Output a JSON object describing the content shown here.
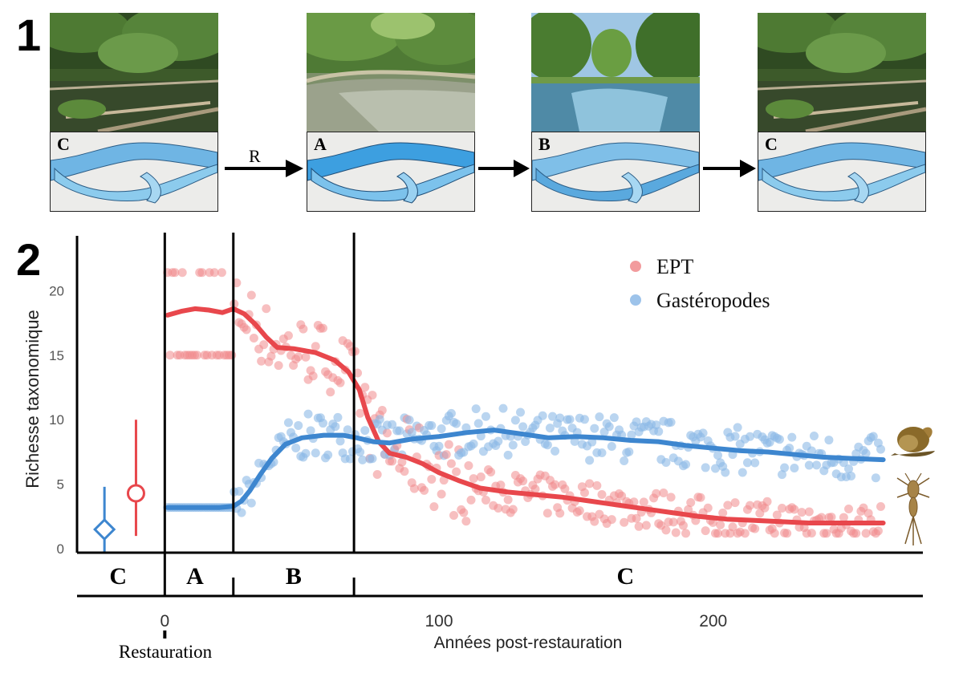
{
  "panels": {
    "one": "1",
    "two": "2"
  },
  "stages": [
    {
      "letter": "C",
      "photo": "shaded-channel"
    },
    {
      "letter": "A",
      "photo": "gravel-bed"
    },
    {
      "letter": "B",
      "photo": "open-water"
    },
    {
      "letter": "C",
      "photo": "shaded-channel"
    }
  ],
  "arrows": [
    {
      "label": "R"
    },
    {
      "label": ""
    },
    {
      "label": ""
    }
  ],
  "colors": {
    "ept": "#e8474c",
    "gastro": "#3d86cf",
    "ept_point": "#f08a8c",
    "gastro_point": "#8cb9e6"
  },
  "chart_data": {
    "type": "scatter",
    "xlabel": "Années post-restauration",
    "ylabel": "Richesse taxonomique",
    "xticks": [
      "0",
      "100",
      "200"
    ],
    "yticks": [
      "0",
      "5",
      "10",
      "15",
      "20"
    ],
    "xlim": [
      -32,
      275
    ],
    "ylim": [
      -0.3,
      23.5
    ],
    "vlines": [
      0,
      25,
      69
    ],
    "phases": [
      {
        "label": "C",
        "x": -17
      },
      {
        "label": "A",
        "x": 11
      },
      {
        "label": "B",
        "x": 47
      },
      {
        "label": "C",
        "x": 168
      }
    ],
    "restoration_label": "Restauration",
    "legend": {
      "position": "top-right",
      "items": [
        "EPT",
        "Gastéropodes"
      ]
    },
    "reference": [
      {
        "series": "Gastéropodes",
        "x": -22,
        "mean": 1.5,
        "low": -0.3,
        "high": 4.8,
        "marker": "diamond"
      },
      {
        "series": "EPT",
        "x": -10.5,
        "mean": 4.3,
        "low": 1.0,
        "high": 10.0,
        "marker": "circle"
      }
    ],
    "series": [
      {
        "name": "EPT",
        "trend": [
          [
            1,
            18.1
          ],
          [
            6,
            18.4
          ],
          [
            11,
            18.6
          ],
          [
            16,
            18.5
          ],
          [
            21,
            18.3
          ],
          [
            25,
            18.6
          ],
          [
            29,
            18.2
          ],
          [
            33,
            17.4
          ],
          [
            37,
            16.4
          ],
          [
            41,
            15.6
          ],
          [
            47,
            15.5
          ],
          [
            55,
            15.2
          ],
          [
            62,
            14.6
          ],
          [
            67,
            13.7
          ],
          [
            71,
            12.3
          ],
          [
            74,
            10.2
          ],
          [
            78,
            8.3
          ],
          [
            82,
            7.4
          ],
          [
            88,
            7.1
          ],
          [
            94,
            6.6
          ],
          [
            100,
            5.9
          ],
          [
            107,
            5.3
          ],
          [
            115,
            4.7
          ],
          [
            125,
            4.4
          ],
          [
            135,
            4.2
          ],
          [
            145,
            4.0
          ],
          [
            155,
            3.7
          ],
          [
            165,
            3.4
          ],
          [
            175,
            3.1
          ],
          [
            185,
            2.8
          ],
          [
            195,
            2.5
          ],
          [
            205,
            2.3
          ],
          [
            215,
            2.2
          ],
          [
            225,
            2.1
          ],
          [
            235,
            2.0
          ],
          [
            245,
            2.0
          ],
          [
            255,
            2.0
          ],
          [
            262,
            2.0
          ]
        ]
      },
      {
        "name": "Gastéropodes",
        "trend": [
          [
            1,
            3.2
          ],
          [
            10,
            3.2
          ],
          [
            20,
            3.2
          ],
          [
            25,
            3.3
          ],
          [
            28,
            3.7
          ],
          [
            31,
            4.5
          ],
          [
            35,
            5.8
          ],
          [
            39,
            7.0
          ],
          [
            44,
            8.1
          ],
          [
            50,
            8.6
          ],
          [
            58,
            8.8
          ],
          [
            65,
            8.8
          ],
          [
            70,
            8.6
          ],
          [
            76,
            8.3
          ],
          [
            82,
            8.2
          ],
          [
            90,
            8.5
          ],
          [
            100,
            8.7
          ],
          [
            110,
            9.0
          ],
          [
            120,
            9.2
          ],
          [
            130,
            8.9
          ],
          [
            140,
            8.6
          ],
          [
            150,
            8.7
          ],
          [
            160,
            8.6
          ],
          [
            170,
            8.4
          ],
          [
            180,
            8.3
          ],
          [
            190,
            8.0
          ],
          [
            200,
            7.8
          ],
          [
            210,
            7.6
          ],
          [
            220,
            7.5
          ],
          [
            230,
            7.3
          ],
          [
            240,
            7.1
          ],
          [
            250,
            7.0
          ],
          [
            262,
            6.9
          ]
        ]
      }
    ]
  }
}
